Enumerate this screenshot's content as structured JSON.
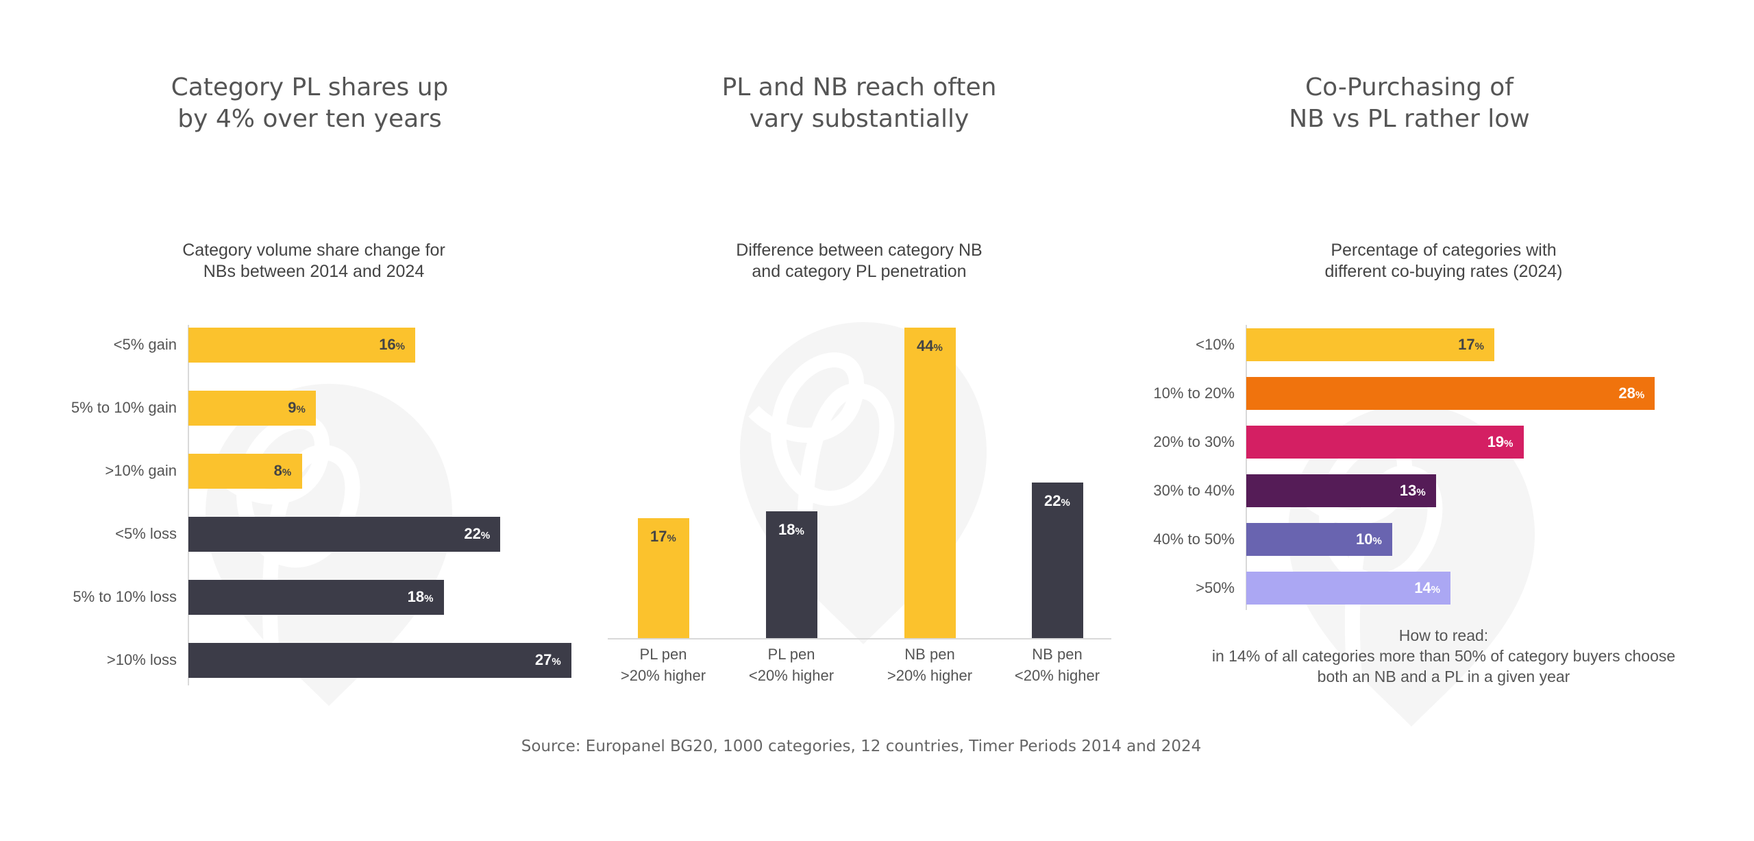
{
  "headlines": [
    [
      "Category PL shares up",
      "by 4% over ten years"
    ],
    [
      "PL and NB reach often",
      "vary substantially"
    ],
    [
      "Co-Purchasing of",
      "NB vs PL rather low"
    ]
  ],
  "source": "Source: Europanel BG20, 1000 categories, 12 countries, Timer Periods 2014 and 2024",
  "how_to_read": {
    "title": "How to read:",
    "line1": "in 14% of all categories more than 50% of category buyers choose",
    "line2": "both an NB and a PL in a given year"
  },
  "colors": {
    "yellow": "#FBC22D",
    "dark": "#3C3C48",
    "orange": "#F0730D",
    "magenta": "#D41F63",
    "plum": "#551C57",
    "violet": "#6964B0",
    "lavender": "#ABA7F3",
    "watermark": "#F5F5F5"
  },
  "chart_data": [
    {
      "type": "bar",
      "orientation": "horizontal",
      "title": [
        "Category volume share change for",
        "NBs between 2014 and 2024"
      ],
      "categories": [
        "<5% gain",
        "5% to 10% gain",
        ">10% gain",
        "<5% loss",
        "5% to 10% loss",
        ">10% loss"
      ],
      "values": [
        16,
        9,
        8,
        22,
        18,
        27
      ],
      "value_suffix": "%",
      "bar_colors": [
        "#FBC22D",
        "#FBC22D",
        "#FBC22D",
        "#3C3C48",
        "#3C3C48",
        "#3C3C48"
      ],
      "label_colors": [
        "#444",
        "#444",
        "#444",
        "#fff",
        "#fff",
        "#fff"
      ]
    },
    {
      "type": "bar",
      "orientation": "vertical",
      "title": [
        "Difference between category NB",
        "and category PL penetration"
      ],
      "categories": [
        [
          "PL pen",
          ">20% higher"
        ],
        [
          "PL pen",
          "<20% higher"
        ],
        [
          "NB pen",
          ">20% higher"
        ],
        [
          "NB pen",
          "<20% higher"
        ]
      ],
      "values": [
        17,
        18,
        44,
        22
      ],
      "value_suffix": "%",
      "bar_colors": [
        "#FBC22D",
        "#3C3C48",
        "#FBC22D",
        "#3C3C48"
      ],
      "label_colors": [
        "#444",
        "#fff",
        "#444",
        "#fff"
      ]
    },
    {
      "type": "bar",
      "orientation": "horizontal",
      "title": [
        "Percentage of categories with",
        "different co-buying rates (2024)"
      ],
      "categories": [
        "<10%",
        "10% to 20%",
        "20% to 30%",
        "30% to 40%",
        "40% to 50%",
        ">50%"
      ],
      "values": [
        17,
        28,
        19,
        13,
        10,
        14
      ],
      "value_suffix": "%",
      "bar_colors": [
        "#FBC22D",
        "#F0730D",
        "#D41F63",
        "#551C57",
        "#6964B0",
        "#ABA7F3"
      ],
      "label_colors": [
        "#444",
        "#fff",
        "#fff",
        "#fff",
        "#fff",
        "#fff"
      ]
    }
  ]
}
